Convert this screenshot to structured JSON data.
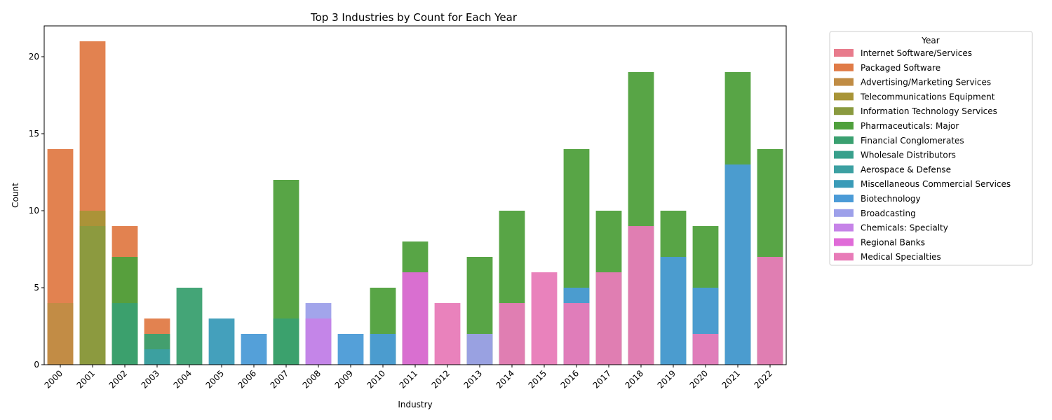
{
  "chart_data": {
    "type": "bar",
    "title": "Top 3 Industries by Count for Each Year",
    "xlabel": "Industry",
    "ylabel": "Count",
    "ylim": [
      0,
      22
    ],
    "yticks": [
      0,
      5,
      10,
      15,
      20
    ],
    "grid": false,
    "legend_title": "Year",
    "legend_position": "outside-right",
    "categories": [
      "2000",
      "2001",
      "2002",
      "2003",
      "2004",
      "2005",
      "2006",
      "2007",
      "2008",
      "2009",
      "2010",
      "2011",
      "2012",
      "2013",
      "2014",
      "2015",
      "2016",
      "2017",
      "2018",
      "2019",
      "2020",
      "2021",
      "2022"
    ],
    "series": [
      {
        "name": "Internet Software/Services",
        "color": "#e87b8c",
        "values": [
          null,
          null,
          null,
          null,
          null,
          null,
          null,
          null,
          null,
          null,
          null,
          null,
          null,
          null,
          null,
          null,
          null,
          null,
          null,
          null,
          null,
          null,
          null
        ]
      },
      {
        "name": "Packaged Software",
        "color": "#e07b47",
        "values": [
          14,
          21,
          9,
          3,
          null,
          null,
          null,
          null,
          null,
          null,
          null,
          null,
          null,
          null,
          null,
          null,
          null,
          null,
          null,
          null,
          null,
          null,
          null
        ]
      },
      {
        "name": "Advertising/Marketing Services",
        "color": "#c08c44",
        "values": [
          4,
          null,
          null,
          null,
          null,
          null,
          null,
          null,
          null,
          null,
          null,
          null,
          null,
          null,
          null,
          null,
          null,
          null,
          null,
          null,
          null,
          null,
          null
        ]
      },
      {
        "name": "Telecommunications Equipment",
        "color": "#a89437",
        "values": [
          null,
          10,
          null,
          null,
          null,
          null,
          null,
          null,
          null,
          null,
          null,
          null,
          null,
          null,
          null,
          null,
          null,
          null,
          null,
          null,
          null,
          null,
          null
        ]
      },
      {
        "name": "Information Technology Services",
        "color": "#8a9a3f",
        "values": [
          null,
          9,
          null,
          null,
          null,
          null,
          null,
          null,
          null,
          null,
          null,
          null,
          null,
          null,
          null,
          null,
          null,
          null,
          null,
          null,
          null,
          null,
          null
        ]
      },
      {
        "name": "Pharmaceuticals: Major",
        "color": "#4fa03c",
        "values": [
          null,
          null,
          7,
          null,
          null,
          null,
          null,
          12,
          null,
          null,
          5,
          8,
          null,
          7,
          10,
          null,
          14,
          10,
          19,
          10,
          9,
          19,
          14
        ]
      },
      {
        "name": "Financial Conglomerates",
        "color": "#3aa070",
        "values": [
          null,
          null,
          4,
          2,
          5,
          null,
          null,
          3,
          null,
          null,
          null,
          null,
          null,
          null,
          null,
          null,
          null,
          null,
          null,
          null,
          null,
          null,
          null
        ]
      },
      {
        "name": "Wholesale Distributors",
        "color": "#38a08c",
        "values": [
          null,
          null,
          null,
          null,
          null,
          null,
          null,
          null,
          null,
          null,
          null,
          null,
          null,
          null,
          null,
          null,
          null,
          null,
          null,
          null,
          null,
          null,
          null
        ]
      },
      {
        "name": "Aerospace & Defense",
        "color": "#3ca0a2",
        "values": [
          null,
          null,
          null,
          1,
          null,
          null,
          null,
          null,
          null,
          null,
          null,
          null,
          null,
          null,
          null,
          null,
          null,
          null,
          null,
          null,
          null,
          null,
          null
        ]
      },
      {
        "name": "Miscellaneous Commercial Services",
        "color": "#3a9bb8",
        "values": [
          null,
          null,
          null,
          null,
          null,
          3,
          null,
          null,
          null,
          null,
          null,
          null,
          null,
          null,
          null,
          null,
          null,
          null,
          null,
          null,
          null,
          null,
          null
        ]
      },
      {
        "name": "Biotechnology",
        "color": "#4b9bd7",
        "values": [
          null,
          null,
          null,
          null,
          null,
          null,
          2,
          null,
          null,
          2,
          2,
          null,
          null,
          null,
          null,
          null,
          5,
          null,
          null,
          7,
          5,
          13,
          null
        ]
      },
      {
        "name": "Broadcasting",
        "color": "#9da0ea",
        "values": [
          null,
          null,
          null,
          null,
          null,
          null,
          null,
          null,
          4,
          null,
          null,
          null,
          null,
          2,
          null,
          null,
          null,
          null,
          null,
          null,
          null,
          null,
          null
        ]
      },
      {
        "name": "Chemicals: Specialty",
        "color": "#c683e8",
        "values": [
          null,
          null,
          null,
          null,
          null,
          null,
          null,
          null,
          3,
          null,
          null,
          null,
          null,
          null,
          null,
          null,
          null,
          null,
          null,
          null,
          null,
          null,
          null
        ]
      },
      {
        "name": "Regional Banks",
        "color": "#e06bd8",
        "values": [
          null,
          null,
          null,
          null,
          null,
          null,
          null,
          null,
          null,
          null,
          null,
          6,
          null,
          null,
          null,
          null,
          null,
          null,
          null,
          null,
          null,
          null,
          null
        ]
      },
      {
        "name": "Medical Specialties",
        "color": "#e87bb8",
        "values": [
          null,
          null,
          null,
          null,
          null,
          null,
          null,
          null,
          null,
          null,
          null,
          null,
          4,
          null,
          4,
          6,
          4,
          6,
          9,
          null,
          2,
          null,
          7
        ]
      }
    ]
  }
}
